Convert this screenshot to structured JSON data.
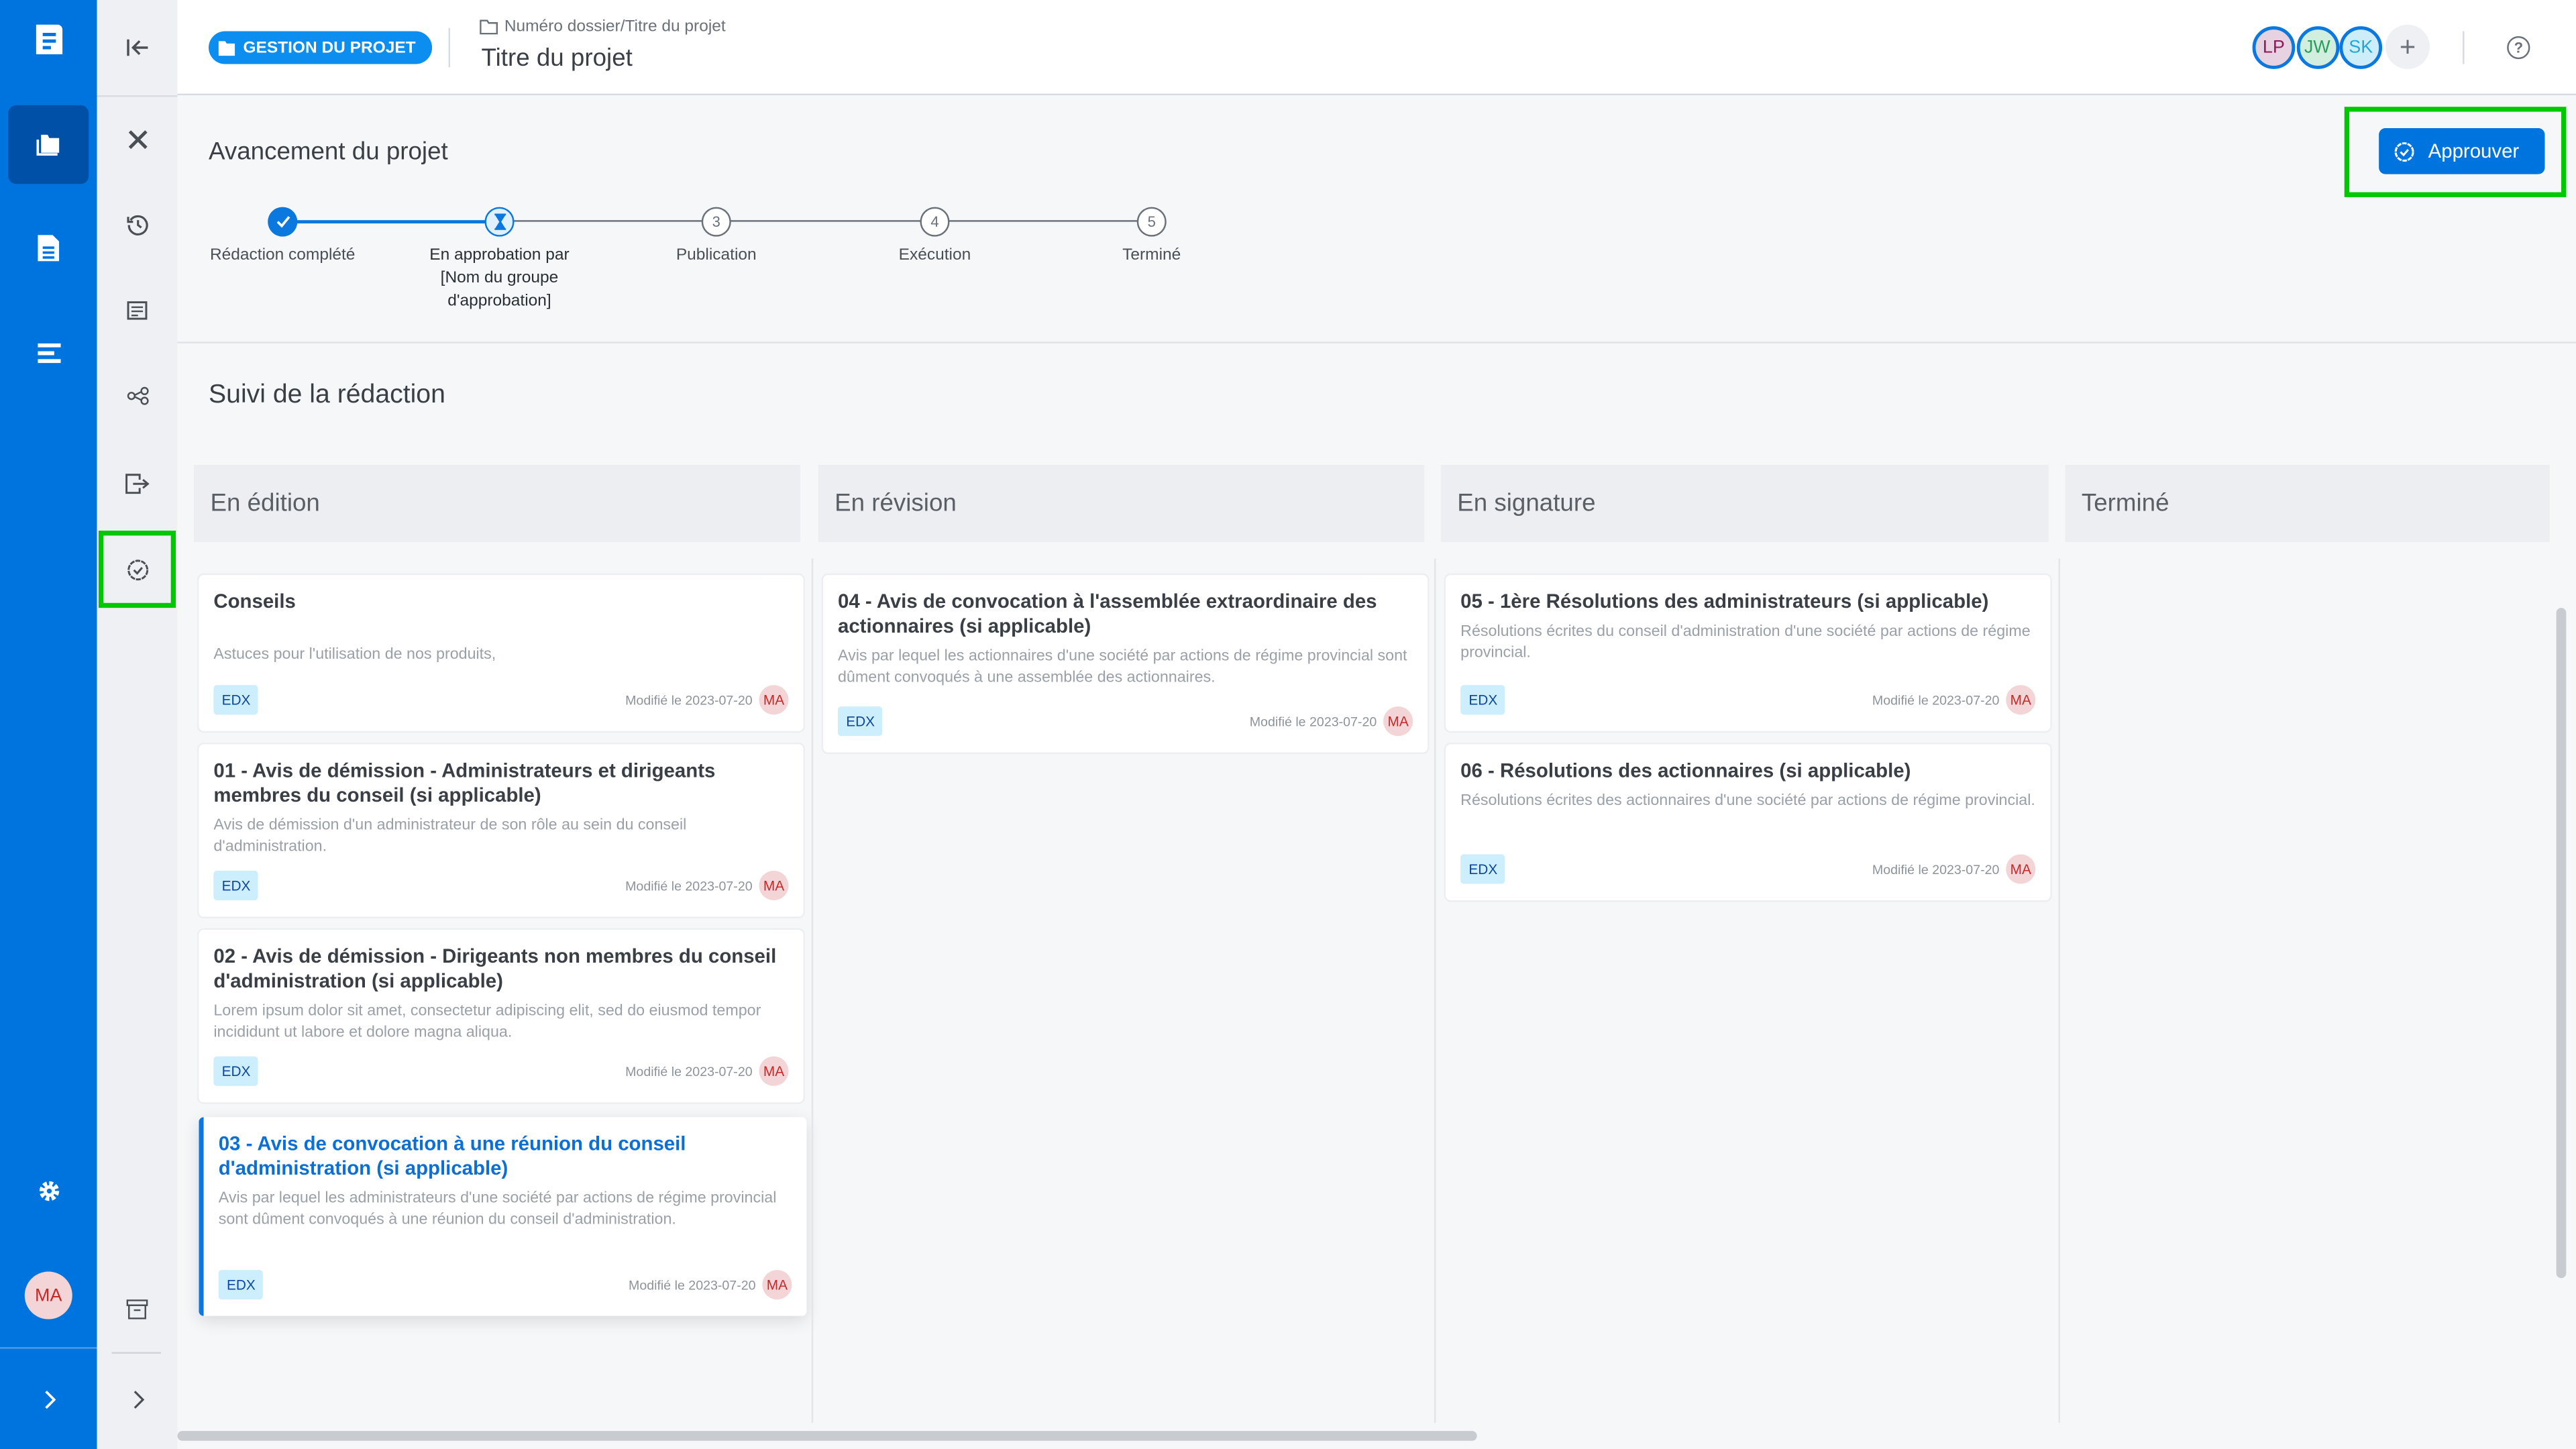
{
  "header": {
    "module_label": "GESTION DU PROJET",
    "breadcrumb": "Numéro dossier/Titre du projet",
    "title": "Titre du projet",
    "members": [
      {
        "initials": "LP",
        "bg": "#e6d2e0",
        "fg": "#8a1a5c"
      },
      {
        "initials": "JW",
        "bg": "#d2eedf",
        "fg": "#2a9d5c"
      },
      {
        "initials": "SK",
        "bg": "#cdeef8",
        "fg": "#1fa8d8"
      }
    ],
    "add_member": "+",
    "help": "?"
  },
  "progress": {
    "title": "Avancement du projet",
    "approve_label": "Approuver",
    "steps": [
      {
        "label": "Rédaction complété",
        "state": "done",
        "num": ""
      },
      {
        "label": "En approbation par [Nom du groupe d'approbation]",
        "state": "current",
        "num": ""
      },
      {
        "label": "Publication",
        "state": "todo",
        "num": "3"
      },
      {
        "label": "Exécution",
        "state": "todo",
        "num": "4"
      },
      {
        "label": "Terminé",
        "state": "todo",
        "num": "5"
      }
    ]
  },
  "tracking": {
    "title": "Suivi de la rédaction",
    "columns": [
      {
        "title": "En édition",
        "cards": [
          {
            "title": "Conseils",
            "desc": "Astuces pour l'utilisation de nos produits,",
            "tag": "EDX",
            "modified": "Modifié le 2023-07-20",
            "user": "MA"
          },
          {
            "title": "01 - Avis de démission - Administrateurs et dirigeants membres du conseil (si applicable)",
            "desc": "Avis  de démission d'un administrateur de son rôle au sein du conseil d'administration.",
            "tag": "EDX",
            "modified": "Modifié le 2023-07-20",
            "user": "MA"
          },
          {
            "title": "02 - Avis de démission - Dirigeants non membres du conseil d'administration (si applicable)",
            "desc": "Lorem ipsum dolor sit amet, consectetur adipiscing elit, sed do eiusmod tempor incididunt ut labore et dolore magna aliqua.",
            "tag": "EDX",
            "modified": "Modifié le 2023-07-20",
            "user": "MA"
          },
          {
            "title": "03 - Avis de convocation à une réunion du conseil d'administration (si applicable)",
            "desc": "Avis par lequel les administrateurs d'une société par actions de régime provincial sont dûment convoqués à une réunion du conseil d'administration.",
            "tag": "EDX",
            "modified": "Modifié le 2023-07-20",
            "user": "MA",
            "selected": true
          }
        ]
      },
      {
        "title": "En révision",
        "cards": [
          {
            "title": "04 - Avis de convocation à l'assemblée extraordinaire des actionnaires (si applicable)",
            "desc": "Avis par lequel les actionnaires d'une société par actions de régime provincial sont dûment convoqués à  une assemblée des actionnaires.",
            "tag": "EDX",
            "modified": "Modifié le 2023-07-20",
            "user": "MA"
          }
        ]
      },
      {
        "title": "En signature",
        "cards": [
          {
            "title": "05 - 1ère Résolutions des administrateurs (si applicable)",
            "desc": "Résolutions écrites du conseil d'administration d'une société par actions de régime provincial.",
            "tag": "EDX",
            "modified": "Modifié le 2023-07-20",
            "user": "MA"
          },
          {
            "title": "06 - Résolutions des actionnaires (si applicable)",
            "desc": "Résolutions écrites des actionnaires d'une société par actions de régime provincial.",
            "tag": "EDX",
            "modified": "Modifié le 2023-07-20",
            "user": "MA"
          }
        ]
      },
      {
        "title": "Terminé",
        "cards": []
      }
    ]
  },
  "sidebar": {
    "user_initials": "MA"
  },
  "colors": {
    "brand": "#0074de",
    "active": "#0050a8",
    "highlight": "#00c800"
  }
}
